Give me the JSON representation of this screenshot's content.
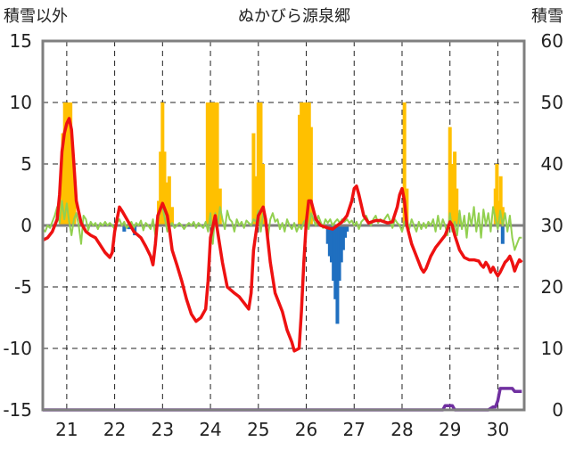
{
  "chart_data": {
    "type": "line",
    "title": "ぬかびら源泉郷",
    "left_axis_label": "積雪以外",
    "right_axis_label": "積雪",
    "left_ylim": [
      -15,
      15
    ],
    "left_yticks": [
      15,
      10,
      5,
      0,
      -5,
      -10,
      -15
    ],
    "right_ylim": [
      0,
      60
    ],
    "right_yticks": [
      60,
      50,
      40,
      30,
      20,
      10,
      0
    ],
    "x_range": [
      20.5,
      30.55
    ],
    "x_tick_labels": [
      "21",
      "22",
      "23",
      "24",
      "25",
      "26",
      "27",
      "28",
      "29",
      "30"
    ],
    "grid": true,
    "colors": {
      "temperature": "#ee1111",
      "wind": "#92d050",
      "precip_positive": "#ffc000",
      "precip_negative": "#1f6fc0",
      "snow_depth": "#7030a0",
      "zero_line": "#7f7f7f",
      "frame": "#7f7f7f",
      "grid": "#222222"
    },
    "temperature": [
      [
        20.5,
        -1.2
      ],
      [
        20.6,
        -1.0
      ],
      [
        20.7,
        -0.5
      ],
      [
        20.8,
        0.5
      ],
      [
        20.85,
        2.5
      ],
      [
        20.9,
        6.0
      ],
      [
        20.95,
        7.5
      ],
      [
        21.0,
        8.3
      ],
      [
        21.05,
        8.7
      ],
      [
        21.1,
        7.8
      ],
      [
        21.15,
        5.0
      ],
      [
        21.2,
        2.0
      ],
      [
        21.3,
        0.2
      ],
      [
        21.4,
        -0.5
      ],
      [
        21.5,
        -0.8
      ],
      [
        21.6,
        -1.0
      ],
      [
        21.7,
        -1.6
      ],
      [
        21.8,
        -2.2
      ],
      [
        21.9,
        -2.6
      ],
      [
        21.95,
        -2.2
      ],
      [
        22.0,
        -0.5
      ],
      [
        22.05,
        0.5
      ],
      [
        22.1,
        1.5
      ],
      [
        22.15,
        1.2
      ],
      [
        22.3,
        0.2
      ],
      [
        22.4,
        -0.5
      ],
      [
        22.55,
        -1.0
      ],
      [
        22.65,
        -1.7
      ],
      [
        22.75,
        -2.5
      ],
      [
        22.8,
        -3.2
      ],
      [
        22.85,
        -1.5
      ],
      [
        22.9,
        0.8
      ],
      [
        23.0,
        1.8
      ],
      [
        23.1,
        0.8
      ],
      [
        23.15,
        -0.5
      ],
      [
        23.2,
        -2.0
      ],
      [
        23.3,
        -3.2
      ],
      [
        23.4,
        -4.5
      ],
      [
        23.5,
        -6.0
      ],
      [
        23.6,
        -7.2
      ],
      [
        23.7,
        -7.8
      ],
      [
        23.8,
        -7.5
      ],
      [
        23.9,
        -6.8
      ],
      [
        23.95,
        -4.5
      ],
      [
        24.0,
        -1.0
      ],
      [
        24.1,
        0.8
      ],
      [
        24.15,
        -0.5
      ],
      [
        24.25,
        -3.0
      ],
      [
        24.35,
        -5.0
      ],
      [
        24.5,
        -5.5
      ],
      [
        24.6,
        -5.8
      ],
      [
        24.7,
        -6.3
      ],
      [
        24.8,
        -6.8
      ],
      [
        24.85,
        -5.5
      ],
      [
        24.9,
        -2.0
      ],
      [
        25.0,
        0.8
      ],
      [
        25.1,
        1.5
      ],
      [
        25.15,
        0.5
      ],
      [
        25.25,
        -3.0
      ],
      [
        25.35,
        -5.5
      ],
      [
        25.5,
        -7.0
      ],
      [
        25.6,
        -8.5
      ],
      [
        25.7,
        -9.5
      ],
      [
        25.75,
        -10.2
      ],
      [
        25.85,
        -10.0
      ],
      [
        25.9,
        -7.0
      ],
      [
        25.95,
        -3.0
      ],
      [
        26.0,
        0.2
      ],
      [
        26.05,
        2.0
      ],
      [
        26.1,
        2.0
      ],
      [
        26.2,
        0.5
      ],
      [
        26.3,
        0.0
      ],
      [
        26.45,
        -0.2
      ],
      [
        26.55,
        -0.3
      ],
      [
        26.65,
        0.0
      ],
      [
        26.75,
        0.3
      ],
      [
        26.85,
        0.8
      ],
      [
        26.95,
        2.0
      ],
      [
        27.0,
        3.0
      ],
      [
        27.05,
        3.2
      ],
      [
        27.1,
        2.5
      ],
      [
        27.2,
        0.8
      ],
      [
        27.3,
        0.2
      ],
      [
        27.45,
        0.4
      ],
      [
        27.55,
        0.4
      ],
      [
        27.7,
        0.2
      ],
      [
        27.8,
        0.3
      ],
      [
        27.9,
        1.5
      ],
      [
        27.95,
        2.5
      ],
      [
        28.0,
        3.0
      ],
      [
        28.05,
        2.0
      ],
      [
        28.1,
        0.0
      ],
      [
        28.2,
        -1.5
      ],
      [
        28.3,
        -2.5
      ],
      [
        28.4,
        -3.5
      ],
      [
        28.45,
        -3.8
      ],
      [
        28.5,
        -3.5
      ],
      [
        28.6,
        -2.5
      ],
      [
        28.7,
        -1.8
      ],
      [
        28.8,
        -1.3
      ],
      [
        28.9,
        -0.8
      ],
      [
        28.95,
        -0.3
      ],
      [
        29.0,
        0.3
      ],
      [
        29.05,
        0.0
      ],
      [
        29.1,
        -0.8
      ],
      [
        29.2,
        -2.0
      ],
      [
        29.3,
        -2.6
      ],
      [
        29.4,
        -2.8
      ],
      [
        29.5,
        -2.8
      ],
      [
        29.6,
        -2.9
      ],
      [
        29.65,
        -3.2
      ],
      [
        29.7,
        -3.4
      ],
      [
        29.75,
        -3.0
      ],
      [
        29.8,
        -3.3
      ],
      [
        29.85,
        -3.8
      ],
      [
        29.9,
        -3.4
      ],
      [
        29.95,
        -3.8
      ],
      [
        30.0,
        -4.1
      ],
      [
        30.05,
        -3.8
      ],
      [
        30.1,
        -3.4
      ],
      [
        30.15,
        -3.0
      ],
      [
        30.2,
        -2.8
      ],
      [
        30.25,
        -2.5
      ],
      [
        30.3,
        -3.0
      ],
      [
        30.35,
        -3.7
      ],
      [
        30.4,
        -3.2
      ],
      [
        30.45,
        -2.8
      ],
      [
        30.5,
        -3.0
      ]
    ],
    "wind": [
      [
        20.5,
        -0.3
      ],
      [
        20.55,
        -0.5
      ],
      [
        20.6,
        0.0
      ],
      [
        20.65,
        -0.2
      ],
      [
        20.7,
        0.3
      ],
      [
        20.75,
        0.8
      ],
      [
        20.8,
        1.5
      ],
      [
        20.85,
        0.2
      ],
      [
        20.9,
        2.0
      ],
      [
        20.95,
        0.5
      ],
      [
        21.0,
        1.8
      ],
      [
        21.05,
        0.3
      ],
      [
        21.1,
        -0.8
      ],
      [
        21.15,
        0.5
      ],
      [
        21.2,
        1.0
      ],
      [
        21.25,
        0.0
      ],
      [
        21.3,
        -1.5
      ],
      [
        21.35,
        0.8
      ],
      [
        21.4,
        0.5
      ],
      [
        21.45,
        -0.4
      ],
      [
        21.5,
        0.3
      ],
      [
        21.55,
        0.0
      ],
      [
        21.6,
        0.2
      ],
      [
        21.65,
        -0.3
      ],
      [
        21.7,
        0.2
      ],
      [
        21.75,
        0.0
      ],
      [
        21.8,
        0.3
      ],
      [
        21.85,
        0.0
      ],
      [
        21.9,
        0.2
      ],
      [
        21.95,
        0.0
      ],
      [
        22.0,
        -0.3
      ],
      [
        22.05,
        0.2
      ],
      [
        22.1,
        0.5
      ],
      [
        22.15,
        0.0
      ],
      [
        22.2,
        0.3
      ],
      [
        22.25,
        -0.2
      ],
      [
        22.3,
        0.0
      ],
      [
        22.35,
        0.3
      ],
      [
        22.4,
        -0.2
      ],
      [
        22.45,
        0.2
      ],
      [
        22.5,
        0.0
      ],
      [
        22.55,
        0.4
      ],
      [
        22.6,
        -0.4
      ],
      [
        22.65,
        0.2
      ],
      [
        22.7,
        0.0
      ],
      [
        22.75,
        -0.3
      ],
      [
        22.8,
        0.5
      ],
      [
        22.85,
        -0.8
      ],
      [
        22.9,
        0.3
      ],
      [
        22.95,
        1.2
      ],
      [
        23.0,
        1.5
      ],
      [
        23.05,
        0.5
      ],
      [
        23.1,
        -0.5
      ],
      [
        23.15,
        0.0
      ],
      [
        23.2,
        0.2
      ],
      [
        23.25,
        -0.2
      ],
      [
        23.3,
        0.0
      ],
      [
        23.35,
        0.2
      ],
      [
        23.4,
        0.0
      ],
      [
        23.45,
        -0.3
      ],
      [
        23.5,
        0.0
      ],
      [
        23.55,
        0.2
      ],
      [
        23.6,
        0.0
      ],
      [
        23.65,
        0.3
      ],
      [
        23.7,
        -0.2
      ],
      [
        23.75,
        0.2
      ],
      [
        23.8,
        0.0
      ],
      [
        23.85,
        -0.2
      ],
      [
        23.9,
        0.3
      ],
      [
        23.95,
        -0.5
      ],
      [
        24.0,
        1.0
      ],
      [
        24.05,
        -1.5
      ],
      [
        24.1,
        1.0
      ],
      [
        24.15,
        0.0
      ],
      [
        24.2,
        1.5
      ],
      [
        24.25,
        0.5
      ],
      [
        24.3,
        -0.3
      ],
      [
        24.35,
        1.2
      ],
      [
        24.4,
        0.5
      ],
      [
        24.45,
        0.3
      ],
      [
        24.5,
        -0.5
      ],
      [
        24.55,
        0.5
      ],
      [
        24.6,
        0.0
      ],
      [
        24.65,
        0.3
      ],
      [
        24.7,
        -0.2
      ],
      [
        24.75,
        0.4
      ],
      [
        24.8,
        0.2
      ],
      [
        24.85,
        0.0
      ],
      [
        24.9,
        0.5
      ],
      [
        24.95,
        0.3
      ],
      [
        25.0,
        1.2
      ],
      [
        25.05,
        -0.5
      ],
      [
        25.1,
        1.0
      ],
      [
        25.15,
        0.5
      ],
      [
        25.2,
        -1.0
      ],
      [
        25.25,
        0.5
      ],
      [
        25.3,
        1.0
      ],
      [
        25.35,
        0.3
      ],
      [
        25.4,
        0.5
      ],
      [
        25.45,
        -0.3
      ],
      [
        25.5,
        0.2
      ],
      [
        25.55,
        -0.5
      ],
      [
        25.6,
        0.5
      ],
      [
        25.65,
        0.0
      ],
      [
        25.7,
        -0.3
      ],
      [
        25.75,
        0.2
      ],
      [
        25.8,
        -0.5
      ],
      [
        25.85,
        0.0
      ],
      [
        25.9,
        -0.3
      ],
      [
        25.95,
        0.3
      ],
      [
        26.0,
        0.5
      ],
      [
        26.05,
        -0.3
      ],
      [
        26.1,
        1.0
      ],
      [
        26.15,
        0.5
      ],
      [
        26.2,
        0.0
      ],
      [
        26.25,
        0.8
      ],
      [
        26.3,
        0.3
      ],
      [
        26.35,
        -0.2
      ],
      [
        26.4,
        0.5
      ],
      [
        26.45,
        0.2
      ],
      [
        26.5,
        0.5
      ],
      [
        26.55,
        0.0
      ],
      [
        26.6,
        0.3
      ],
      [
        26.65,
        0.5
      ],
      [
        26.7,
        0.2
      ],
      [
        26.75,
        0.5
      ],
      [
        26.8,
        0.3
      ],
      [
        26.85,
        0.5
      ],
      [
        26.9,
        0.2
      ],
      [
        26.95,
        0.4
      ],
      [
        27.0,
        0.0
      ],
      [
        27.05,
        0.3
      ],
      [
        27.1,
        -0.3
      ],
      [
        27.15,
        0.3
      ],
      [
        27.2,
        0.5
      ],
      [
        27.25,
        0.8
      ],
      [
        27.3,
        0.3
      ],
      [
        27.35,
        0.0
      ],
      [
        27.4,
        0.5
      ],
      [
        27.45,
        0.8
      ],
      [
        27.5,
        0.2
      ],
      [
        27.55,
        0.5
      ],
      [
        27.6,
        0.3
      ],
      [
        27.65,
        0.6
      ],
      [
        27.7,
        0.9
      ],
      [
        27.75,
        0.4
      ],
      [
        27.8,
        -0.2
      ],
      [
        27.85,
        0.5
      ],
      [
        27.9,
        0.2
      ],
      [
        27.95,
        0.0
      ],
      [
        28.0,
        -0.5
      ],
      [
        28.05,
        0.3
      ],
      [
        28.1,
        0.5
      ],
      [
        28.15,
        -0.3
      ],
      [
        28.2,
        0.5
      ],
      [
        28.25,
        0.0
      ],
      [
        28.3,
        -0.5
      ],
      [
        28.35,
        0.3
      ],
      [
        28.4,
        -0.3
      ],
      [
        28.45,
        0.2
      ],
      [
        28.5,
        -0.2
      ],
      [
        28.55,
        0.3
      ],
      [
        28.6,
        0.0
      ],
      [
        28.65,
        0.5
      ],
      [
        28.7,
        -0.5
      ],
      [
        28.75,
        0.8
      ],
      [
        28.8,
        -0.3
      ],
      [
        28.85,
        0.5
      ],
      [
        28.9,
        0.0
      ],
      [
        28.95,
        -0.8
      ],
      [
        29.0,
        1.0
      ],
      [
        29.05,
        -0.5
      ],
      [
        29.1,
        0.3
      ],
      [
        29.15,
        -0.8
      ],
      [
        29.2,
        1.2
      ],
      [
        29.25,
        -0.3
      ],
      [
        29.3,
        0.8
      ],
      [
        29.35,
        -1.0
      ],
      [
        29.4,
        1.0
      ],
      [
        29.45,
        0.0
      ],
      [
        29.5,
        1.5
      ],
      [
        29.55,
        -0.5
      ],
      [
        29.6,
        1.0
      ],
      [
        29.65,
        -1.0
      ],
      [
        29.7,
        1.3
      ],
      [
        29.75,
        0.0
      ],
      [
        29.8,
        1.0
      ],
      [
        29.85,
        -0.5
      ],
      [
        29.9,
        1.5
      ],
      [
        29.95,
        0.5
      ],
      [
        30.0,
        -0.3
      ],
      [
        30.05,
        1.2
      ],
      [
        30.1,
        0.0
      ],
      [
        30.15,
        1.0
      ],
      [
        30.2,
        -0.5
      ],
      [
        30.25,
        0.8
      ],
      [
        30.3,
        -1.0
      ],
      [
        30.35,
        -2.0
      ],
      [
        30.4,
        -1.5
      ],
      [
        30.45,
        -1.0
      ],
      [
        30.5,
        -1.0
      ]
    ],
    "precip_positive": [
      [
        20.88,
        4.0
      ],
      [
        20.92,
        7.5
      ],
      [
        20.96,
        10.0
      ],
      [
        21.0,
        10.0
      ],
      [
        21.04,
        10.0
      ],
      [
        21.08,
        10.0
      ],
      [
        21.12,
        6.0
      ],
      [
        21.16,
        3.0
      ],
      [
        22.92,
        2.0
      ],
      [
        22.96,
        6.0
      ],
      [
        23.0,
        10.0
      ],
      [
        23.04,
        6.0
      ],
      [
        23.08,
        3.5
      ],
      [
        23.14,
        4.0
      ],
      [
        23.2,
        1.5
      ],
      [
        23.94,
        10.0
      ],
      [
        23.98,
        10.0
      ],
      [
        24.02,
        10.0
      ],
      [
        24.06,
        10.0
      ],
      [
        24.1,
        10.0
      ],
      [
        24.14,
        10.0
      ],
      [
        24.2,
        3.0
      ],
      [
        24.9,
        7.5
      ],
      [
        24.95,
        4.0
      ],
      [
        25.0,
        10.0
      ],
      [
        25.05,
        10.0
      ],
      [
        25.1,
        5.0
      ],
      [
        25.86,
        9.0
      ],
      [
        25.9,
        10.0
      ],
      [
        25.94,
        10.0
      ],
      [
        25.98,
        10.0
      ],
      [
        26.02,
        10.0
      ],
      [
        26.06,
        10.0
      ],
      [
        26.1,
        8.0
      ],
      [
        28.05,
        10.0
      ],
      [
        28.1,
        3.0
      ],
      [
        29.0,
        8.0
      ],
      [
        29.03,
        3.0
      ],
      [
        29.06,
        5.0
      ],
      [
        29.1,
        6.0
      ],
      [
        29.14,
        3.0
      ],
      [
        29.18,
        1.0
      ],
      [
        29.95,
        3.0
      ],
      [
        29.98,
        5.0
      ],
      [
        30.02,
        2.0
      ],
      [
        30.06,
        4.0
      ],
      [
        30.1,
        1.5
      ]
    ],
    "precip_negative": [
      [
        22.2,
        -0.5
      ],
      [
        22.3,
        -0.3
      ],
      [
        22.42,
        -0.8
      ],
      [
        26.45,
        -1.5
      ],
      [
        26.49,
        -2.5
      ],
      [
        26.53,
        -3.0
      ],
      [
        26.57,
        -4.5
      ],
      [
        26.61,
        -6.0
      ],
      [
        26.65,
        -8.0
      ],
      [
        26.69,
        -4.5
      ],
      [
        26.73,
        -3.0
      ],
      [
        26.77,
        -2.0
      ],
      [
        26.81,
        -1.0
      ],
      [
        26.85,
        -0.5
      ],
      [
        30.1,
        -1.5
      ]
    ],
    "snow_depth": [
      [
        20.5,
        0.0
      ],
      [
        28.85,
        0.0
      ],
      [
        28.9,
        0.7
      ],
      [
        29.05,
        0.7
      ],
      [
        29.1,
        0.0
      ],
      [
        29.8,
        0.0
      ],
      [
        29.9,
        0.5
      ],
      [
        29.95,
        0.5
      ],
      [
        30.0,
        1.5
      ],
      [
        30.05,
        3.5
      ],
      [
        30.3,
        3.5
      ],
      [
        30.35,
        3.0
      ],
      [
        30.5,
        3.0
      ]
    ]
  }
}
